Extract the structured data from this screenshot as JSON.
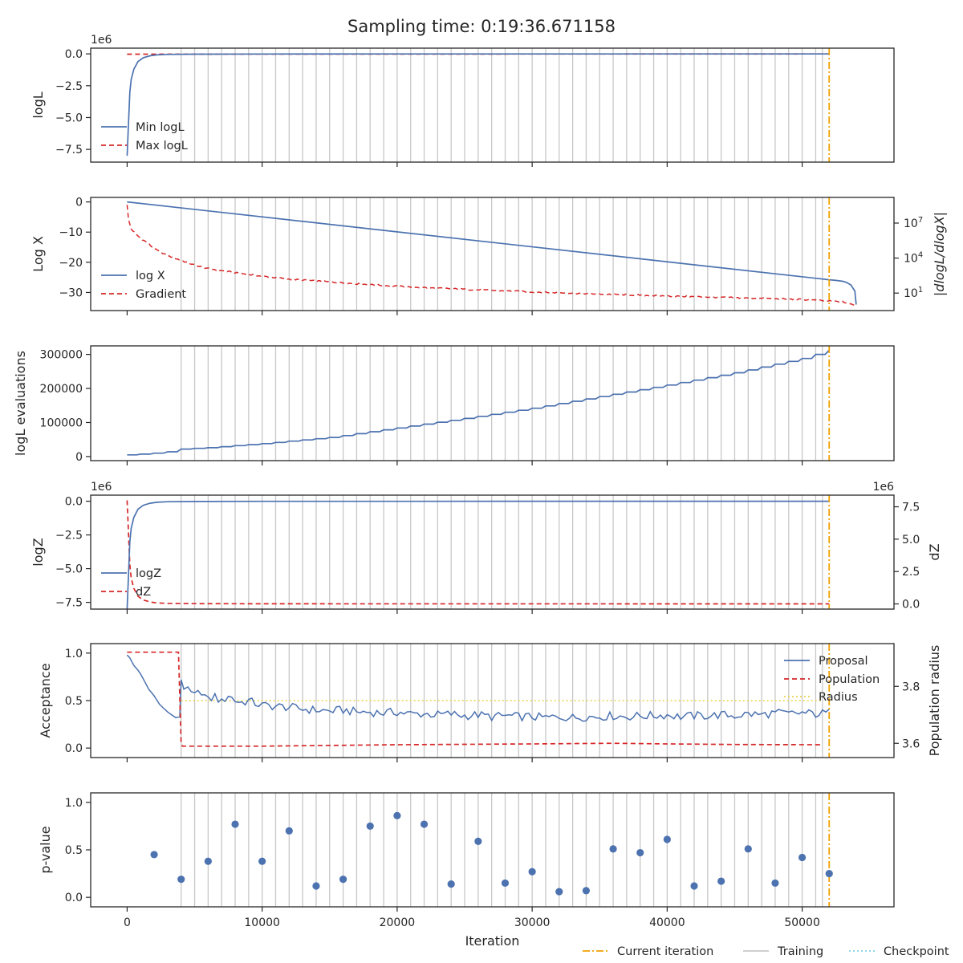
{
  "title": "Sampling time: 0:19:36.671158",
  "colors": {
    "blue": "#4c72b0",
    "red": "#d62728",
    "orange": "#f0a000",
    "training": "#c8c8c8",
    "checkpoint": "#7fd3e8",
    "radius": "#e8d44d",
    "frame": "#262626"
  },
  "shared_x": {
    "label": "Iteration",
    "range": [
      -2700,
      56800
    ],
    "ticks": [
      0,
      10000,
      20000,
      30000,
      40000,
      50000
    ],
    "tick_labels": [
      "0",
      "10000",
      "20000",
      "30000",
      "40000",
      "50000"
    ],
    "current_iteration": 52000,
    "training_start": 4000,
    "training_interval": 1000,
    "training_end": 51000,
    "training_last": 51500
  },
  "figure_legend": [
    "Current iteration",
    "Training",
    "Checkpoint"
  ],
  "chart_data": [
    {
      "type": "line",
      "panel": "logL",
      "ylabel": "logL",
      "offset_text": "1e6",
      "ylim": [
        -8.5,
        0.45
      ],
      "yticks": [
        0.0,
        -2.5,
        -5.0,
        -7.5
      ],
      "ytick_labels": [
        "0.0",
        "−2.5",
        "−5.0",
        "−7.5"
      ],
      "legend": "lower left",
      "series": [
        {
          "name": "Min logL",
          "x": [
            0,
            100,
            200,
            300,
            500,
            800,
            1200,
            1700,
            2200,
            3000,
            5000,
            10000,
            20000,
            30000,
            40000,
            50000,
            52000
          ],
          "y": [
            -8.0,
            -5.5,
            -3.0,
            -2.0,
            -1.2,
            -0.6,
            -0.3,
            -0.15,
            -0.08,
            -0.04,
            -0.02,
            -0.01,
            -0.005,
            -0.003,
            -0.002,
            -0.001,
            -0.001
          ]
        },
        {
          "name": "Max logL",
          "x": [
            0,
            52000
          ],
          "y": [
            -0.02,
            -0.001
          ]
        }
      ]
    },
    {
      "type": "line",
      "panel": "logX",
      "ylabel": "Log X",
      "ylabel_right": "|dlogL/dlogX|",
      "ylim": [
        -36,
        1.5
      ],
      "yticks": [
        0,
        -10,
        -20,
        -30
      ],
      "ytick_labels": [
        "0",
        "−10",
        "−20",
        "−30"
      ],
      "right_scale": "log",
      "right_ylim_exponent": [
        -0.5,
        9.2
      ],
      "right_ticks": [
        1,
        4,
        7
      ],
      "right_tick_labels": [
        "10",
        "10",
        "10"
      ],
      "right_tick_exponents": [
        "1",
        "4",
        "7"
      ],
      "legend": "lower left",
      "series": [
        {
          "name": "log X",
          "x": [
            0,
            52000,
            52500,
            53000,
            53300,
            53600,
            53900,
            54000
          ],
          "y": [
            0,
            -25.8,
            -26.0,
            -26.3,
            -26.7,
            -27.5,
            -29.5,
            -34.0
          ]
        },
        {
          "name": "Gradient",
          "x": [
            0,
            100,
            300,
            600,
            1000,
            1500,
            2000,
            3000,
            4000,
            5000,
            6000,
            8000,
            10000,
            12000,
            15000,
            18000,
            21000,
            25000,
            30000,
            35000,
            40000,
            45000,
            50000,
            53000,
            54000
          ],
          "y_exponent": [
            8.6,
            7.3,
            6.5,
            6.1,
            5.7,
            5.3,
            4.8,
            4.2,
            3.8,
            3.4,
            3.1,
            2.75,
            2.45,
            2.2,
            1.95,
            1.72,
            1.52,
            1.32,
            1.1,
            0.92,
            0.75,
            0.6,
            0.45,
            0.25,
            -0.1
          ]
        }
      ]
    },
    {
      "type": "line",
      "panel": "logL evaluations",
      "ylabel": "logL evaluations",
      "ylim": [
        -12000,
        325000
      ],
      "yticks": [
        0,
        100000,
        200000,
        300000
      ],
      "ytick_labels": [
        "0",
        "100000",
        "200000",
        "300000"
      ],
      "series": [
        {
          "name": "",
          "x": [
            0,
            1000,
            2000,
            3000,
            4000,
            6000,
            8000,
            10000,
            15000,
            20000,
            25000,
            30000,
            35000,
            40000,
            45000,
            50000,
            52000
          ],
          "y": [
            5000,
            7000,
            10000,
            14000,
            22000,
            26000,
            32000,
            38000,
            56000,
            84000,
            112000,
            142000,
            176000,
            210000,
            246000,
            288000,
            312000
          ]
        }
      ]
    },
    {
      "type": "line",
      "panel": "logZ",
      "ylabel": "logZ",
      "ylabel_right": "dZ",
      "offset_text": "1e6",
      "offset_text_right": "1e6",
      "ylim": [
        -8.0,
        0.45
      ],
      "yticks": [
        0.0,
        -2.5,
        -5.0,
        -7.5
      ],
      "ytick_labels": [
        "0.0",
        "−2.5",
        "−5.0",
        "−7.5"
      ],
      "right_ylim": [
        -0.4,
        8.4
      ],
      "right_ticks": [
        0.0,
        2.5,
        5.0,
        7.5
      ],
      "right_tick_labels": [
        "0.0",
        "2.5",
        "5.0",
        "7.5"
      ],
      "legend": "lower left",
      "series": [
        {
          "name": "logZ",
          "x": [
            0,
            100,
            200,
            300,
            500,
            800,
            1200,
            1700,
            2200,
            3000,
            5000,
            10000,
            52000
          ],
          "y": [
            -8.0,
            -5.5,
            -3.0,
            -2.0,
            -1.2,
            -0.6,
            -0.3,
            -0.15,
            -0.08,
            -0.04,
            -0.02,
            -0.01,
            -0.001
          ]
        },
        {
          "name": "dZ",
          "x": [
            0,
            100,
            200,
            300,
            500,
            800,
            1200,
            1700,
            2200,
            3000,
            5000,
            10000,
            52000
          ],
          "y": [
            8.0,
            5.5,
            3.0,
            2.0,
            1.2,
            0.6,
            0.3,
            0.15,
            0.08,
            0.04,
            0.02,
            0.01,
            0.001
          ]
        }
      ]
    },
    {
      "type": "line",
      "panel": "Acceptance",
      "ylabel": "Acceptance",
      "ylabel_right": "Population radius",
      "ylim": [
        -0.1,
        1.1
      ],
      "yticks": [
        0.0,
        0.5,
        1.0
      ],
      "ytick_labels": [
        "0.0",
        "0.5",
        "1.0"
      ],
      "right_ylim": [
        3.55,
        3.95
      ],
      "right_ticks": [
        3.6,
        3.8
      ],
      "right_tick_labels": [
        "3.6",
        "3.8"
      ],
      "legend": "upper right",
      "series": [
        {
          "name": "Proposal",
          "x": [
            0,
            200,
            500,
            800,
            1000,
            1300,
            1600,
            2000,
            2400,
            2700,
            3000,
            3300,
            3600,
            3900,
            4000,
            4200,
            4500,
            5000,
            5500,
            6000,
            6500,
            7000,
            7500,
            8000,
            8500,
            9000,
            9500,
            10000,
            11000,
            12000,
            13000,
            14000,
            15000,
            16000,
            17000,
            18000,
            19000,
            20000,
            21000,
            22000,
            23000,
            24000,
            25000,
            26000,
            27000,
            28000,
            29000,
            30000,
            31000,
            32000,
            33000,
            34000,
            35000,
            36000,
            37000,
            38000,
            39000,
            40000,
            41000,
            42000,
            43000,
            44000,
            45000,
            46000,
            47000,
            48000,
            49000,
            50000,
            51000,
            52000
          ],
          "y": [
            0.98,
            0.95,
            0.87,
            0.82,
            0.78,
            0.7,
            0.62,
            0.55,
            0.46,
            0.42,
            0.38,
            0.35,
            0.32,
            0.33,
            0.72,
            0.62,
            0.6,
            0.55,
            0.6,
            0.5,
            0.55,
            0.48,
            0.56,
            0.5,
            0.48,
            0.5,
            0.47,
            0.45,
            0.44,
            0.43,
            0.41,
            0.4,
            0.39,
            0.4,
            0.38,
            0.38,
            0.37,
            0.38,
            0.36,
            0.36,
            0.35,
            0.36,
            0.34,
            0.35,
            0.33,
            0.34,
            0.33,
            0.33,
            0.32,
            0.33,
            0.32,
            0.33,
            0.33,
            0.34,
            0.33,
            0.34,
            0.34,
            0.35,
            0.33,
            0.34,
            0.34,
            0.35,
            0.34,
            0.36,
            0.35,
            0.37,
            0.36,
            0.37,
            0.36,
            0.37
          ]
        },
        {
          "name": "Population",
          "x": [
            0,
            3800,
            4000,
            4100,
            10000,
            20000,
            30000,
            36000,
            40000,
            45000,
            51500
          ],
          "y_right": [
            3.92,
            3.92,
            3.6,
            3.59,
            3.59,
            3.595,
            3.598,
            3.6,
            3.598,
            3.596,
            3.595
          ]
        },
        {
          "name": "Radius",
          "x": [
            4000,
            51500
          ],
          "y": [
            0.5,
            0.5
          ]
        }
      ]
    },
    {
      "type": "scatter",
      "panel": "p-value",
      "ylabel": "p-value",
      "ylim": [
        -0.1,
        1.1
      ],
      "yticks": [
        0.0,
        0.5,
        1.0
      ],
      "ytick_labels": [
        "0.0",
        "0.5",
        "1.0"
      ],
      "x": [
        2000,
        4000,
        6000,
        8000,
        10000,
        12000,
        14000,
        16000,
        18000,
        20000,
        22000,
        24000,
        26000,
        28000,
        30000,
        32000,
        34000,
        36000,
        38000,
        40000,
        42000,
        44000,
        46000,
        48000,
        50000,
        52000
      ],
      "y": [
        0.45,
        0.19,
        0.38,
        0.77,
        0.38,
        0.7,
        0.12,
        0.19,
        0.75,
        0.86,
        0.77,
        0.14,
        0.59,
        0.15,
        0.27,
        0.06,
        0.07,
        0.51,
        0.47,
        0.61,
        0.12,
        0.17,
        0.51,
        0.15,
        0.42,
        0.25
      ]
    }
  ]
}
